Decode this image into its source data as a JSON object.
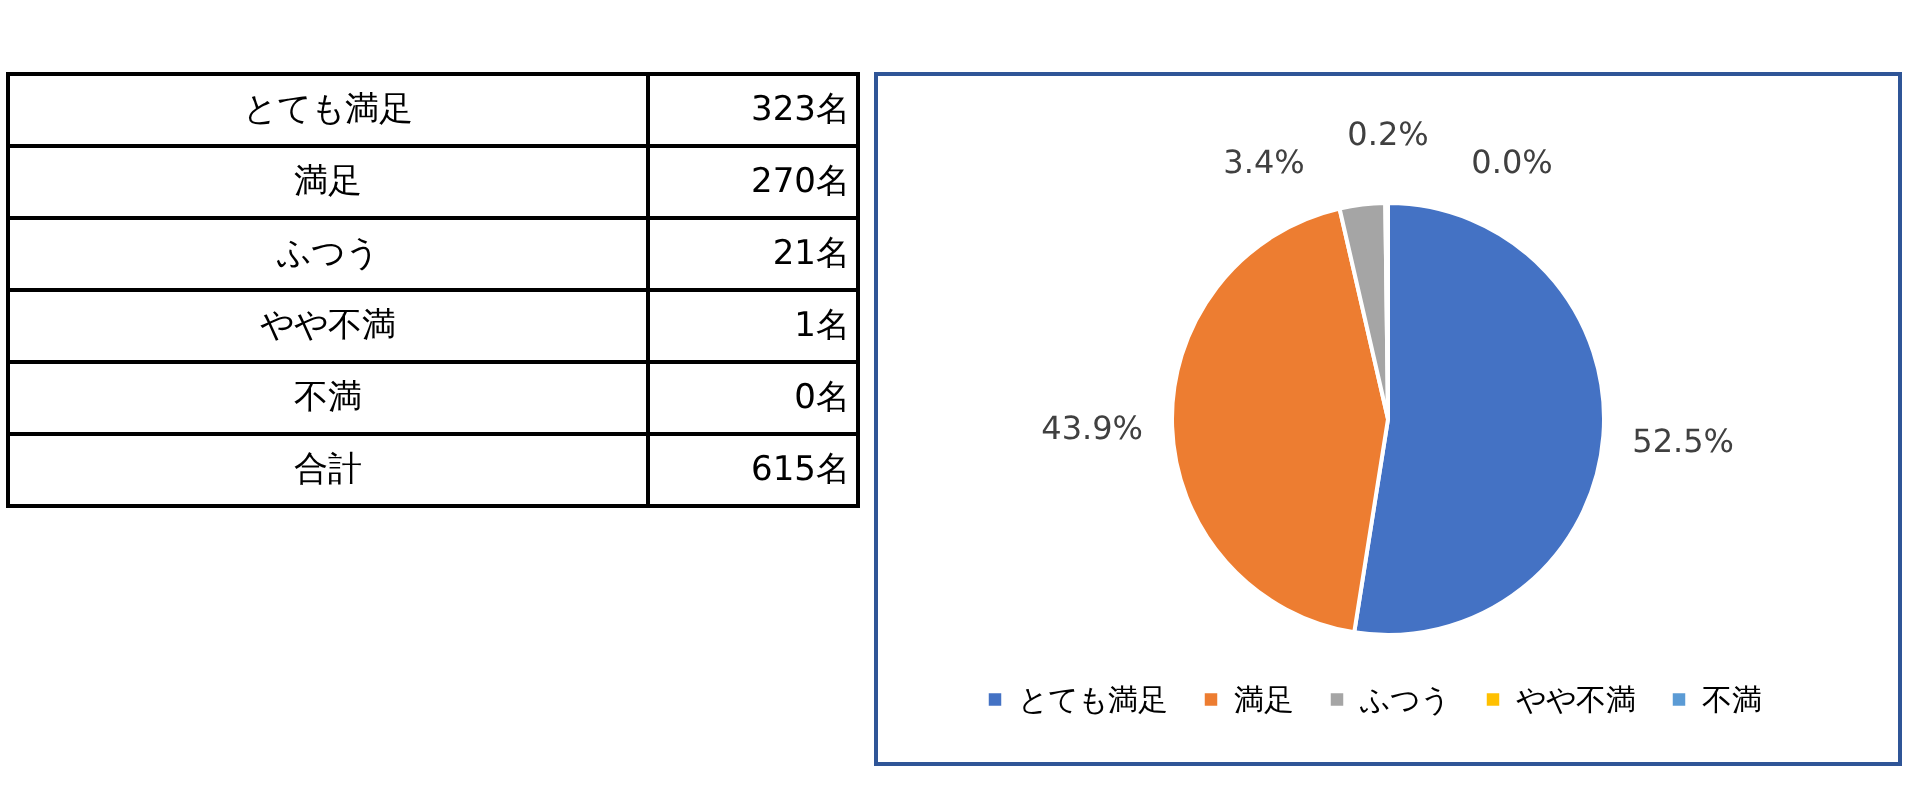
{
  "chart_data": [
    {
      "type": "other",
      "categories": [
        "とても満足",
        "満足",
        "ふつう",
        "やや不満",
        "不満",
        "合計"
      ],
      "value_labels": [
        "323名",
        "270名",
        "21名",
        "1名",
        "0名",
        "615名"
      ]
    },
    {
      "type": "pie",
      "categories": [
        "とても満足",
        "満足",
        "ふつう",
        "やや不満",
        "不満"
      ],
      "values": [
        52.5,
        43.9,
        3.4,
        0.2,
        0.0
      ],
      "value_labels": [
        "52.5%",
        "43.9%",
        "3.4%",
        "0.2%",
        "0.0%"
      ],
      "colors": [
        "#4472c4",
        "#ed7d31",
        "#a5a5a5",
        "#ffc000",
        "#5b9bd5"
      ],
      "legend": "bottom"
    }
  ]
}
